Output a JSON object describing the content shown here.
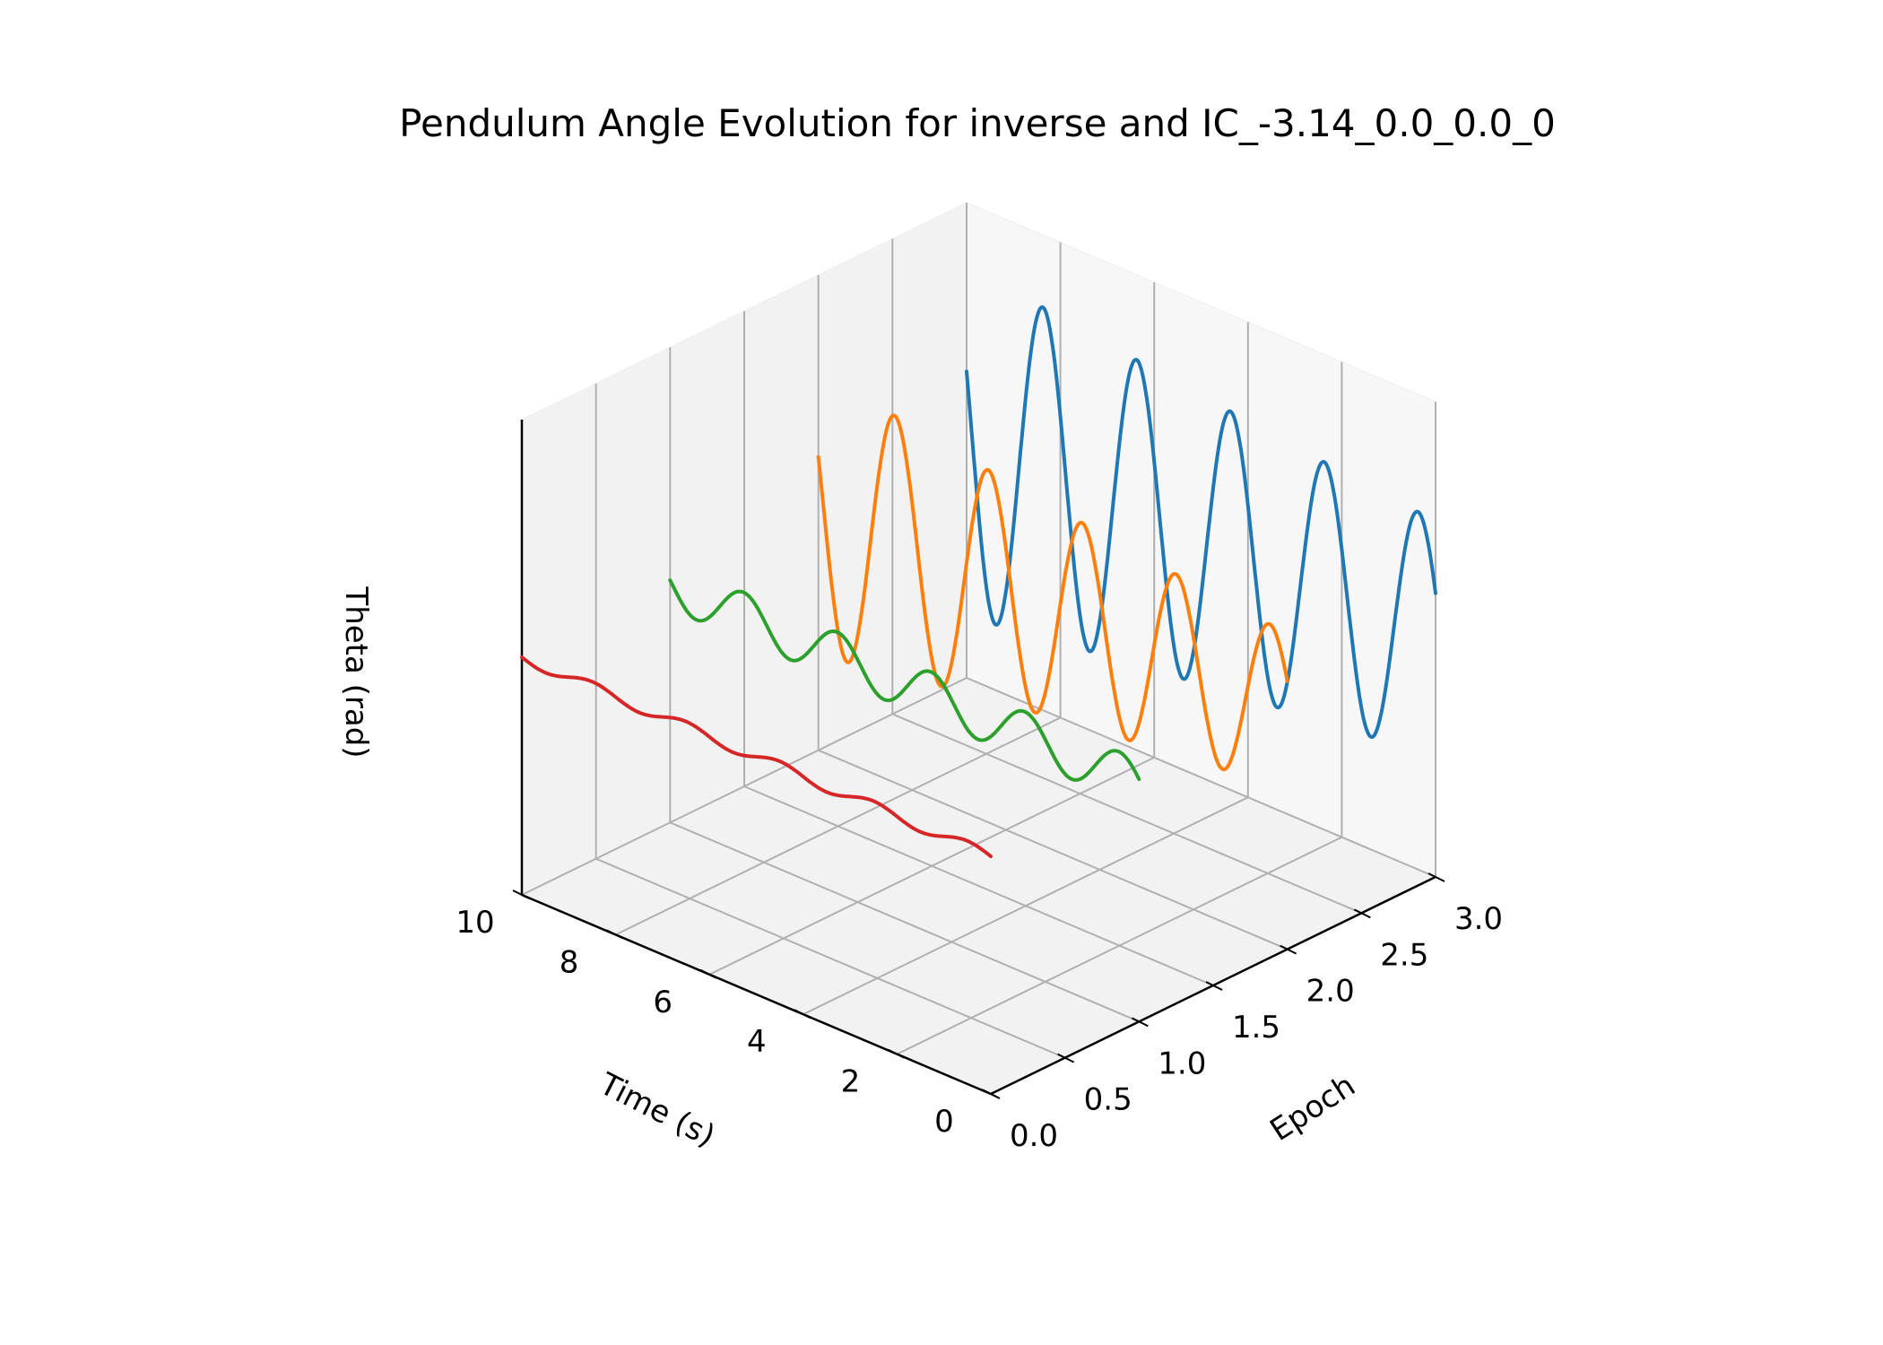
{
  "chart_data": {
    "type": "line",
    "projection": "3d",
    "title": "Pendulum Angle Evolution for inverse and IC_-3.14_0.0_0.0_0",
    "xlabel": "Time (s)",
    "ylabel": "Epoch",
    "zlabel": "Theta (rad)",
    "xlim": [
      0,
      10
    ],
    "ylim": [
      0,
      3
    ],
    "zlim": [
      -3.5,
      3.5
    ],
    "x_ticks": [
      "0",
      "2",
      "4",
      "6",
      "8",
      "10"
    ],
    "y_ticks": [
      "0.0",
      "0.5",
      "1.0",
      "1.5",
      "2.0",
      "2.5",
      "3.0"
    ],
    "grid": true,
    "legend": false,
    "series": [
      {
        "epoch": 3,
        "color": "#1f77b4",
        "amplitude": 2.6,
        "decay": 0.04,
        "phase": 0.4,
        "offset": 0.0,
        "x_range": [
          0,
          10
        ]
      },
      {
        "epoch": 2,
        "color": "#ff7f0e",
        "amplitude": 2.1,
        "decay": 0.06,
        "phase": 0.4,
        "offset": 0.0,
        "x_range": [
          0,
          10
        ]
      },
      {
        "epoch": 1,
        "color": "#2ca02c",
        "amplitude": 0.35,
        "decay": 0.0,
        "phase": 0.2,
        "offset": 0.0,
        "x_range": [
          0,
          10
        ]
      },
      {
        "epoch": 0,
        "color": "#d62728",
        "amplitude": 0.08,
        "decay": 0.0,
        "phase": 0.0,
        "offset": 0.0,
        "x_range": [
          0,
          10
        ]
      }
    ]
  }
}
